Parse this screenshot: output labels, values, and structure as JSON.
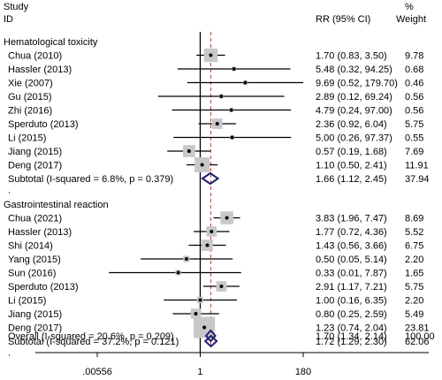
{
  "chart_data": {
    "type": "forest",
    "header": {
      "study_line1": "Study",
      "study_line2": "ID",
      "rr": "RR (95% CI)",
      "weight_line1": "%",
      "weight_line2": "Weight"
    },
    "x_axis": {
      "scale": "log",
      "ticks": [
        {
          "value": 0.00556,
          "label": ".00556"
        },
        {
          "value": 1,
          "label": "1"
        },
        {
          "value": 180,
          "label": "180"
        }
      ],
      "null_line": 1,
      "overall_line": 1.7,
      "range": [
        0.00556,
        180
      ]
    },
    "groups": [
      {
        "title": "Hematological toxicity",
        "studies": [
          {
            "label": "Chua (2010)",
            "rr": 1.7,
            "lo": 0.83,
            "hi": 3.5,
            "ci_text": "1.70 (0.83, 3.50)",
            "weight": "9.78"
          },
          {
            "label": "Hassler (2013)",
            "rr": 5.48,
            "lo": 0.32,
            "hi": 94.25,
            "ci_text": "5.48 (0.32, 94.25)",
            "weight": "0.68"
          },
          {
            "label": "Xie (2007)",
            "rr": 9.69,
            "lo": 0.52,
            "hi": 179.7,
            "ci_text": "9.69 (0.52, 179.70)",
            "weight": "0.46"
          },
          {
            "label": "Gu (2015)",
            "rr": 2.89,
            "lo": 0.12,
            "hi": 69.24,
            "ci_text": "2.89 (0.12, 69.24)",
            "weight": "0.56"
          },
          {
            "label": "Zhi (2016)",
            "rr": 4.79,
            "lo": 0.24,
            "hi": 97.0,
            "ci_text": "4.79 (0.24, 97.00)",
            "weight": "0.56"
          },
          {
            "label": "Sperduto (2013)",
            "rr": 2.36,
            "lo": 0.92,
            "hi": 6.04,
            "ci_text": "2.36 (0.92, 6.04)",
            "weight": "5.75"
          },
          {
            "label": "Li (2015)",
            "rr": 5.0,
            "lo": 0.26,
            "hi": 97.37,
            "ci_text": "5.00 (0.26, 97.37)",
            "weight": "0.55"
          },
          {
            "label": "Jiang (2015)",
            "rr": 0.57,
            "lo": 0.19,
            "hi": 1.68,
            "ci_text": "0.57 (0.19, 1.68)",
            "weight": "7.69"
          },
          {
            "label": "Deng (2017)",
            "rr": 1.1,
            "lo": 0.5,
            "hi": 2.41,
            "ci_text": "1.10 (0.50, 2.41)",
            "weight": "11.91"
          }
        ],
        "subtotal": {
          "label": "Subtotal  (I-squared = 6.8%, p = 0.379)",
          "rr": 1.66,
          "lo": 1.12,
          "hi": 2.45,
          "ci_text": "1.66 (1.12, 2.45)",
          "weight": "37.94"
        }
      },
      {
        "title": "Gastrointestinal reaction",
        "studies": [
          {
            "label": "Chua (2021)",
            "rr": 3.83,
            "lo": 1.96,
            "hi": 7.47,
            "ci_text": "3.83 (1.96, 7.47)",
            "weight": "8.69"
          },
          {
            "label": "Hassler (2013)",
            "rr": 1.77,
            "lo": 0.72,
            "hi": 4.36,
            "ci_text": "1.77 (0.72, 4.36)",
            "weight": "5.52"
          },
          {
            "label": "Shi (2014)",
            "rr": 1.43,
            "lo": 0.56,
            "hi": 3.66,
            "ci_text": "1.43 (0.56, 3.66)",
            "weight": "6.75"
          },
          {
            "label": "Yang (2015)",
            "rr": 0.5,
            "lo": 0.05,
            "hi": 5.14,
            "ci_text": "0.50 (0.05, 5.14)",
            "weight": "2.20"
          },
          {
            "label": "Sun (2016)",
            "rr": 0.33,
            "lo": 0.01,
            "hi": 7.87,
            "ci_text": "0.33 (0.01, 7.87)",
            "weight": "1.65"
          },
          {
            "label": "Sperduto (2013)",
            "rr": 2.91,
            "lo": 1.17,
            "hi": 7.21,
            "ci_text": "2.91 (1.17, 7.21)",
            "weight": "5.75"
          },
          {
            "label": "Li (2015)",
            "rr": 1.0,
            "lo": 0.16,
            "hi": 6.35,
            "ci_text": "1.00 (0.16, 6.35)",
            "weight": "2.20"
          },
          {
            "label": "Jiang (2015)",
            "rr": 0.8,
            "lo": 0.25,
            "hi": 2.59,
            "ci_text": "0.80 (0.25, 2.59)",
            "weight": "5.49"
          },
          {
            "label": "Deng (2017)",
            "rr": 1.23,
            "lo": 0.74,
            "hi": 2.04,
            "ci_text": "1.23 (0.74, 2.04)",
            "weight": "23.81"
          }
        ],
        "subtotal": {
          "label": "Subtotal  (I-squared = 37.2%, p = 0.121)",
          "rr": 1.72,
          "lo": 1.29,
          "hi": 2.3,
          "ci_text": "1.72 (1.29, 2.30)",
          "weight": "62.06"
        }
      }
    ],
    "overall": {
      "label": "Overall  (I-squared = 20.6%, p = 0.209)",
      "rr": 1.7,
      "lo": 1.34,
      "hi": 2.14,
      "ci_text": "1.70 (1.34, 2.14)",
      "weight": "100.00"
    },
    "colors": {
      "box": "#c8c8c8",
      "diamond": "#1f1f6e",
      "overall_line": "#c0392b",
      "line": "#000000"
    }
  }
}
